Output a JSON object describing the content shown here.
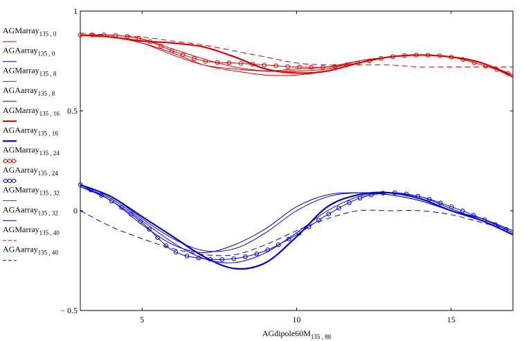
{
  "chart_data": {
    "type": "line",
    "xlabel": "AGdipole60M",
    "xlabel_sub": "135 , 88",
    "xlim": [
      3,
      17
    ],
    "ylim": [
      -0.5,
      1
    ],
    "xticks": [
      5,
      10,
      15
    ],
    "yticks": [
      {
        "value": 1,
        "label": "1"
      },
      {
        "value": 0.5,
        "label": "0.5"
      },
      {
        "value": 0,
        "label": "0"
      },
      {
        "value": -0.5,
        "label": "− 0.5"
      }
    ],
    "grid": false,
    "legend_position": "left",
    "series": [
      {
        "name": "AGMarray",
        "sub": "135 , 0",
        "color": "#e00000",
        "style": "thin",
        "x": [
          3,
          4,
          5,
          6,
          7,
          8,
          9,
          10,
          11,
          12,
          13,
          14,
          15,
          16,
          17
        ],
        "y": [
          0.88,
          0.87,
          0.84,
          0.79,
          0.73,
          0.7,
          0.68,
          0.68,
          0.7,
          0.74,
          0.77,
          0.78,
          0.77,
          0.74,
          0.68
        ]
      },
      {
        "name": "AGAarray",
        "sub": "135 , 0",
        "color": "#0000e0",
        "style": "thin",
        "x": [
          3,
          4,
          5,
          6,
          7,
          8,
          9,
          10,
          11,
          12,
          13,
          14,
          15,
          16,
          17
        ],
        "y": [
          0.13,
          0.07,
          -0.04,
          -0.14,
          -0.2,
          -0.19,
          -0.11,
          0.0,
          0.07,
          0.09,
          0.08,
          0.05,
          0.0,
          -0.04,
          -0.1
        ]
      },
      {
        "name": "AGMarray",
        "sub": "135 , 8",
        "color": "#e00000",
        "style": "thin",
        "x": [
          3,
          4,
          5,
          6,
          7,
          8,
          9,
          10,
          11,
          12,
          13,
          14,
          15,
          16,
          17
        ],
        "y": [
          0.88,
          0.88,
          0.86,
          0.81,
          0.76,
          0.72,
          0.7,
          0.7,
          0.71,
          0.75,
          0.77,
          0.78,
          0.77,
          0.74,
          0.68
        ]
      },
      {
        "name": "AGAarray",
        "sub": "135 , 8",
        "color": "#0000e0",
        "style": "thin",
        "x": [
          3,
          4,
          5,
          6,
          7,
          8,
          9,
          10,
          11,
          12,
          13,
          14,
          15,
          16,
          17
        ],
        "y": [
          0.12,
          0.05,
          -0.07,
          -0.17,
          -0.21,
          -0.17,
          -0.09,
          0.02,
          0.08,
          0.09,
          0.08,
          0.05,
          0.0,
          -0.04,
          -0.11
        ]
      },
      {
        "name": "AGMarray",
        "sub": "135 , 16",
        "color": "#e00000",
        "style": "thick",
        "x": [
          3,
          4,
          5,
          6,
          7,
          8,
          9,
          10,
          11,
          12,
          13,
          14,
          15,
          16,
          17
        ],
        "y": [
          0.88,
          0.87,
          0.85,
          0.84,
          0.82,
          0.77,
          0.71,
          0.69,
          0.7,
          0.74,
          0.77,
          0.78,
          0.77,
          0.74,
          0.67
        ]
      },
      {
        "name": "AGAarray",
        "sub": "135 , 16",
        "color": "#0000e0",
        "style": "thick",
        "x": [
          3,
          4,
          5,
          6,
          7,
          8,
          9,
          10,
          11,
          12,
          13,
          14,
          15,
          16,
          17
        ],
        "y": [
          0.13,
          0.07,
          -0.03,
          -0.13,
          -0.23,
          -0.29,
          -0.26,
          -0.13,
          0.02,
          0.08,
          0.09,
          0.06,
          0.0,
          -0.05,
          -0.12
        ]
      },
      {
        "name": "AGMarray",
        "sub": "135 , 24",
        "color": "#e00000",
        "style": "circle",
        "x": [
          3,
          4,
          5,
          6,
          7,
          8,
          9,
          10,
          11,
          12,
          13,
          14,
          15,
          16,
          17
        ],
        "y": [
          0.88,
          0.88,
          0.86,
          0.8,
          0.75,
          0.74,
          0.73,
          0.72,
          0.72,
          0.74,
          0.77,
          0.78,
          0.77,
          0.73,
          0.68
        ]
      },
      {
        "name": "AGAarray",
        "sub": "135 , 24",
        "color": "#0000e0",
        "style": "circle",
        "x": [
          3,
          4,
          5,
          6,
          7,
          8,
          9,
          10,
          11,
          12,
          13,
          14,
          15,
          16,
          17
        ],
        "y": [
          0.13,
          0.05,
          -0.06,
          -0.2,
          -0.24,
          -0.24,
          -0.2,
          -0.12,
          -0.02,
          0.06,
          0.09,
          0.07,
          0.02,
          -0.04,
          -0.11
        ]
      },
      {
        "name": "AGMarray",
        "sub": "135 , 32",
        "color": "#e00000",
        "style": "thin",
        "x": [
          3,
          4,
          5,
          6,
          7,
          8,
          9,
          10,
          11,
          12,
          13,
          14,
          15,
          16,
          17
        ],
        "y": [
          0.88,
          0.87,
          0.84,
          0.78,
          0.73,
          0.71,
          0.7,
          0.71,
          0.72,
          0.75,
          0.77,
          0.78,
          0.77,
          0.74,
          0.68
        ]
      },
      {
        "name": "AGAarray",
        "sub": "135 , 32",
        "color": "#0000e0",
        "style": "thin",
        "x": [
          3,
          4,
          5,
          6,
          7,
          8,
          9,
          10,
          11,
          12,
          13,
          14,
          15,
          16,
          17
        ],
        "y": [
          0.12,
          0.06,
          -0.05,
          -0.16,
          -0.24,
          -0.26,
          -0.21,
          -0.11,
          0.0,
          0.07,
          0.09,
          0.07,
          0.01,
          -0.05,
          -0.12
        ]
      },
      {
        "name": "AGMarray",
        "sub": "135 , 40",
        "color": "#e00000",
        "style": "dash",
        "x": [
          3,
          4,
          5,
          6,
          7,
          8,
          9,
          10,
          11,
          12,
          13,
          14,
          15,
          16,
          17
        ],
        "y": [
          0.89,
          0.88,
          0.87,
          0.85,
          0.83,
          0.8,
          0.77,
          0.74,
          0.73,
          0.73,
          0.73,
          0.72,
          0.72,
          0.72,
          0.72
        ]
      },
      {
        "name": "AGAarray",
        "sub": "135 , 40",
        "color": "#0000e0",
        "style": "dash",
        "x": [
          3,
          4,
          5,
          6,
          7,
          8,
          9,
          10,
          11,
          12,
          13,
          14,
          15,
          16,
          17
        ],
        "y": [
          0.0,
          -0.08,
          -0.14,
          -0.19,
          -0.22,
          -0.22,
          -0.17,
          -0.1,
          -0.04,
          0.0,
          0.0,
          0.0,
          -0.02,
          -0.06,
          -0.1
        ]
      }
    ]
  }
}
